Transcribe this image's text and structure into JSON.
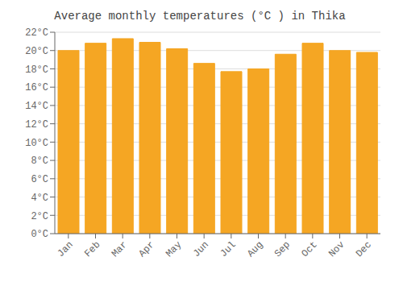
{
  "chart_data": {
    "type": "bar",
    "title": "Average monthly temperatures (°C ) in Thika",
    "categories": [
      "Jan",
      "Feb",
      "Mar",
      "Apr",
      "May",
      "Jun",
      "Jul",
      "Aug",
      "Sep",
      "Oct",
      "Nov",
      "Dec"
    ],
    "values": [
      20.0,
      20.8,
      21.3,
      20.9,
      20.2,
      18.6,
      17.7,
      18.0,
      19.6,
      20.8,
      20.0,
      19.8
    ],
    "color": "#F5A623",
    "ylim": [
      0,
      22
    ],
    "yticks": [
      {
        "value": 0,
        "label": "0°C"
      },
      {
        "value": 2,
        "label": "2°C"
      },
      {
        "value": 4,
        "label": "4°C"
      },
      {
        "value": 6,
        "label": "6°C"
      },
      {
        "value": 8,
        "label": "8°C"
      },
      {
        "value": 10,
        "label": "10°C"
      },
      {
        "value": 12,
        "label": "12°C"
      },
      {
        "value": 14,
        "label": "14°C"
      },
      {
        "value": 16,
        "label": "16°C"
      },
      {
        "value": 18,
        "label": "18°C"
      },
      {
        "value": 20,
        "label": "20°C"
      },
      {
        "value": 22,
        "label": "22°C"
      }
    ],
    "grid": true
  }
}
